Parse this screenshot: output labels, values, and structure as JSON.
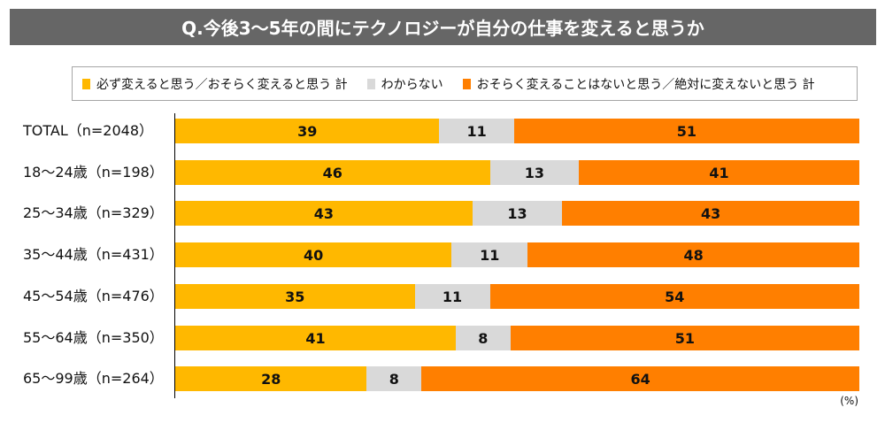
{
  "chart_data": {
    "type": "bar",
    "orientation": "horizontal",
    "stacked": true,
    "title": "Q.今後3～5年の間にテクノロジーが自分の仕事を変えると思うか",
    "unit": "(%)",
    "categories": [
      "TOTAL（n=2048）",
      "18～24歳（n=198）",
      "25～34歳（n=329）",
      "35～44歳（n=431）",
      "45～54歳（n=476）",
      "55～64歳（n=350）",
      "65～99歳（n=264）"
    ],
    "series": [
      {
        "name": "必ず変えると思う／おそらく変えると思う 計",
        "color": "#FFB800",
        "values": [
          39,
          46,
          43,
          40,
          35,
          41,
          28
        ]
      },
      {
        "name": "わからない",
        "color": "#D9D9D9",
        "values": [
          11,
          13,
          13,
          11,
          11,
          8,
          8
        ]
      },
      {
        "name": "おそらく変えることはないと思う／絶対に変えないと思う 計",
        "color": "#FF7F00",
        "values": [
          51,
          41,
          43,
          48,
          54,
          51,
          64
        ]
      }
    ],
    "legend_position": "top",
    "grid": false
  }
}
